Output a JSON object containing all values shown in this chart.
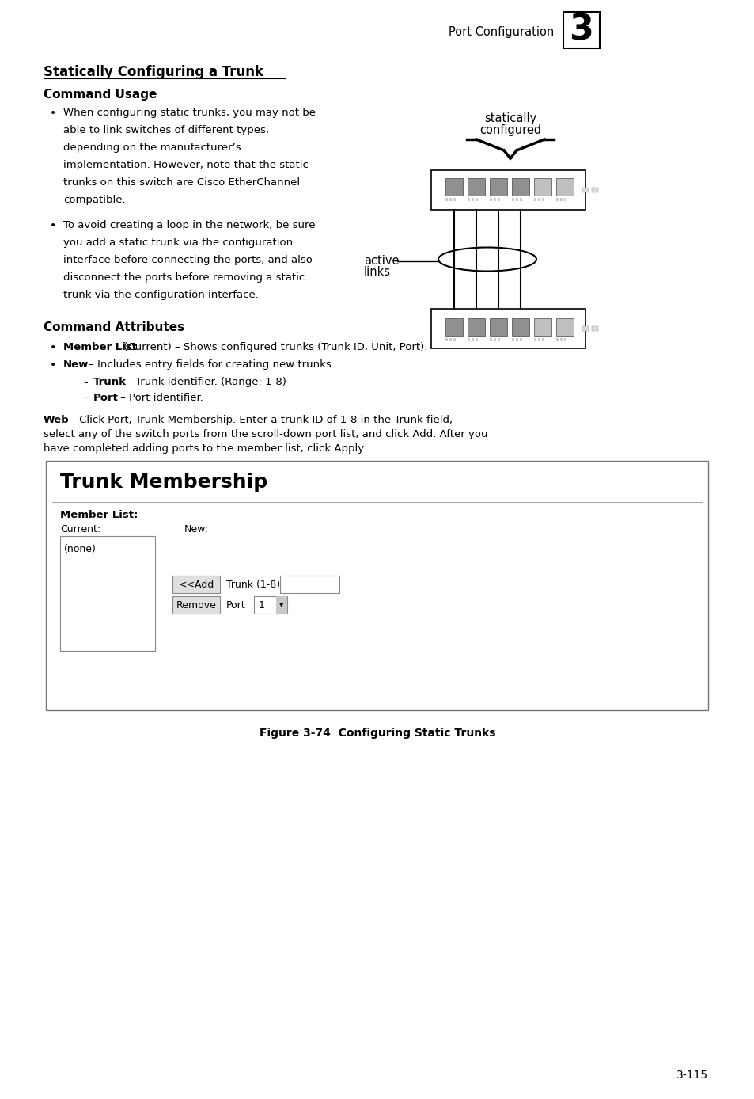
{
  "page_title": "Port Configuration",
  "chapter_num": "3",
  "section_title": "Statically Configuring a Trunk",
  "subsection1": "Command Usage",
  "subsection2": "Command Attributes",
  "attr1_bold": "Member List",
  "attr1_text": " (Current) – Shows configured trunks (Trunk ID, Unit, Port).",
  "attr2_bold": "New",
  "attr2_text": " – Includes entry fields for creating new trunks.",
  "sub_attr1_bold": "Trunk",
  "sub_attr1_text": " – Trunk identifier. (Range: 1-8)",
  "sub_attr2_bold": "Port",
  "sub_attr2_text": " – Port identifier.",
  "web_bold": "Web",
  "web_line1": " – Click Port, Trunk Membership. Enter a trunk ID of 1-8 in the Trunk field,",
  "web_line2": "select any of the switch ports from the scroll-down port list, and click Add. After you",
  "web_line3": "have completed adding ports to the member list, click Apply.",
  "figure_caption": "Figure 3-74  Configuring Static Trunks",
  "page_number": "3-115",
  "ui_title": "Trunk Membership",
  "member_list_label": "Member List:",
  "current_label": "Current:",
  "new_label": "New:",
  "none_text": "(none)",
  "add_btn": "<<Add",
  "remove_btn": "Remove",
  "trunk_label": "Trunk (1-8)",
  "port_label": "Port",
  "port_value": "1",
  "diag_label1": "statically",
  "diag_label2": "configured",
  "diag_active1": "active",
  "diag_active2": "links",
  "b1_lines": [
    "When configuring static trunks, you may not be",
    "able to link switches of different types,",
    "depending on the manufacturer’s",
    "implementation. However, note that the static",
    "trunks on this switch are Cisco EtherChannel",
    "compatible."
  ],
  "b2_lines": [
    "To avoid creating a loop in the network, be sure",
    "you add a static trunk via the configuration",
    "interface before connecting the ports, and also",
    "disconnect the ports before removing a static",
    "trunk via the configuration interface."
  ],
  "bg_color": "#ffffff",
  "text_color": "#000000"
}
